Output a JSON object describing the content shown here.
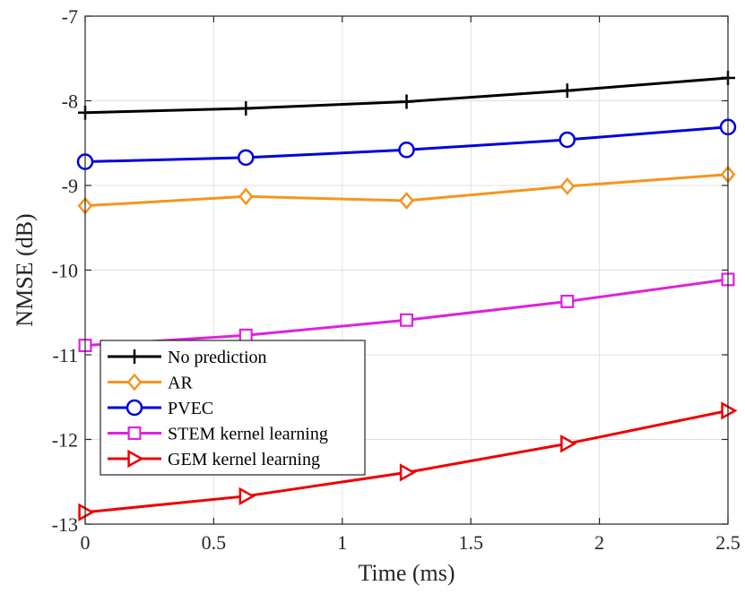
{
  "chart_data": {
    "type": "line",
    "xlabel": "Time (ms)",
    "ylabel": "NMSE (dB)",
    "xlim": [
      0,
      2.5
    ],
    "ylim": [
      -13,
      -7
    ],
    "xticks": [
      0,
      0.5,
      1,
      1.5,
      2,
      2.5
    ],
    "xtick_labels": [
      "0",
      "0.5",
      "1",
      "1.5",
      "2",
      "2.5"
    ],
    "yticks": [
      -13,
      -12,
      -11,
      -10,
      -9,
      -8,
      -7
    ],
    "ytick_labels": [
      "-13",
      "-12",
      "-11",
      "-10",
      "-9",
      "-8",
      "-7"
    ],
    "grid": true,
    "legend_position": "lower-left",
    "x": [
      0,
      0.625,
      1.25,
      1.875,
      2.5
    ],
    "series": [
      {
        "name": "No prediction",
        "color": "#000000",
        "marker": "plus",
        "values": [
          -8.14,
          -8.09,
          -8.01,
          -7.88,
          -7.73
        ]
      },
      {
        "name": "AR",
        "color": "#f7941d",
        "marker": "diamond",
        "values": [
          -9.24,
          -9.13,
          -9.18,
          -9.01,
          -8.87
        ]
      },
      {
        "name": "PVEC",
        "color": "#0000dd",
        "marker": "circle",
        "values": [
          -8.72,
          -8.67,
          -8.58,
          -8.46,
          -8.31
        ]
      },
      {
        "name": "STEM kernel learning",
        "color": "#dd22dd",
        "marker": "square",
        "values": [
          -10.89,
          -10.77,
          -10.59,
          -10.37,
          -10.11
        ]
      },
      {
        "name": "GEM kernel learning",
        "color": "#ee0000",
        "marker": "triangle-right",
        "values": [
          -12.86,
          -12.67,
          -12.39,
          -12.05,
          -11.66
        ]
      }
    ]
  }
}
